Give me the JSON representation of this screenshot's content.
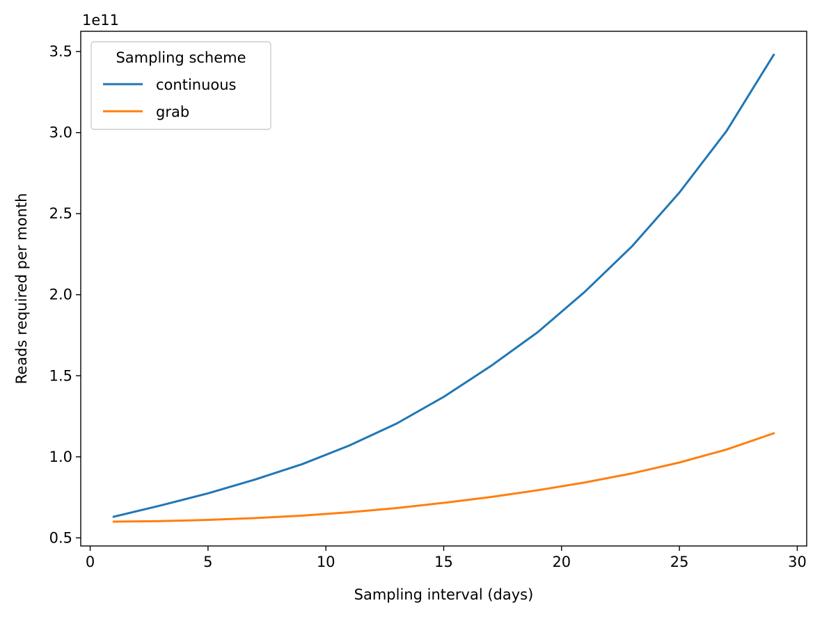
{
  "chart_data": {
    "type": "line",
    "title": "",
    "xlabel": "Sampling interval (days)",
    "ylabel": "Reads required per month",
    "y_offset_label": "1e11",
    "xlim": [
      -0.4,
      30.4
    ],
    "ylim": [
      0.45,
      3.625
    ],
    "x_ticks": [
      0,
      5,
      10,
      15,
      20,
      25,
      30
    ],
    "x_tick_labels": [
      "0",
      "5",
      "10",
      "15",
      "20",
      "25",
      "30"
    ],
    "y_ticks": [
      0.5,
      1.0,
      1.5,
      2.0,
      2.5,
      3.0,
      3.5
    ],
    "y_tick_labels": [
      "0.5",
      "1.0",
      "1.5",
      "2.0",
      "2.5",
      "3.0",
      "3.5"
    ],
    "grid": false,
    "legend": {
      "title": "Sampling scheme",
      "placement": "top-left"
    },
    "x": [
      1,
      3,
      5,
      7,
      9,
      11,
      13,
      15,
      17,
      19,
      21,
      23,
      25,
      27,
      29
    ],
    "series": [
      {
        "name": "continuous",
        "color": "#1f77b4",
        "values": [
          0.63,
          0.7,
          0.775,
          0.86,
          0.955,
          1.07,
          1.205,
          1.37,
          1.56,
          1.77,
          2.02,
          2.3,
          2.63,
          3.01,
          3.48
        ]
      },
      {
        "name": "grab",
        "color": "#ff7f0e",
        "values": [
          0.6,
          0.603,
          0.611,
          0.622,
          0.637,
          0.658,
          0.684,
          0.716,
          0.752,
          0.794,
          0.842,
          0.898,
          0.965,
          1.045,
          1.145
        ]
      }
    ]
  }
}
